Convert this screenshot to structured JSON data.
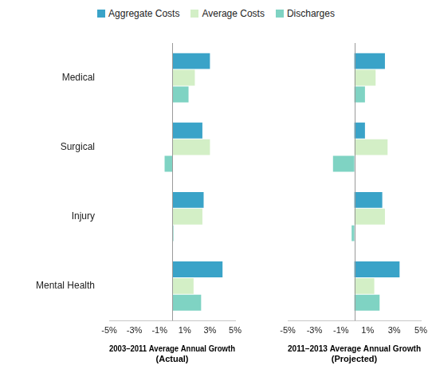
{
  "chart_data": [
    {
      "type": "bar",
      "orientation": "horizontal",
      "legend": "top",
      "grid": false,
      "x_label": [
        "2003–2011 Average Annual Growth",
        "(Actual)"
      ],
      "categories": [
        "Medical",
        "Surgical",
        "Injury",
        "Mental Health"
      ],
      "series": [
        {
          "name": "Aggregate Costs",
          "color": "#3aa3c8",
          "values": [
            3.0,
            2.4,
            2.5,
            4.0
          ]
        },
        {
          "name": "Average Costs",
          "color": "#d3efc6",
          "values": [
            1.8,
            3.0,
            2.4,
            1.7
          ]
        },
        {
          "name": "Discharges",
          "color": "#7fd3c3",
          "values": [
            1.3,
            -0.6,
            0.1,
            2.3
          ]
        }
      ],
      "xlim": [
        -5,
        5
      ],
      "xticks": [
        {
          "value": -5,
          "label": "-5%"
        },
        {
          "value": -3,
          "label": "-3%"
        },
        {
          "value": -1,
          "label": "-1%"
        },
        {
          "value": 1,
          "label": "1%"
        },
        {
          "value": 3,
          "label": "3%"
        },
        {
          "value": 5,
          "label": "5%"
        }
      ]
    },
    {
      "type": "bar",
      "orientation": "horizontal",
      "grid": false,
      "tick_labels": "x",
      "x_label": [
        "2011–2013 Average Annual Growth",
        "(Projected)"
      ],
      "categories": [
        "Medical",
        "Surgical",
        "Injury",
        "Mental Health"
      ],
      "series": [
        {
          "name": "Aggregate Costs",
          "color": "#3aa3c8",
          "values": [
            2.3,
            0.8,
            2.1,
            3.4
          ]
        },
        {
          "name": "Average Costs",
          "color": "#d3efc6",
          "values": [
            1.6,
            2.5,
            2.3,
            1.5
          ]
        },
        {
          "name": "Discharges",
          "color": "#7fd3c3",
          "values": [
            0.8,
            -1.6,
            -0.2,
            1.9
          ]
        }
      ],
      "xlim": [
        -5,
        5
      ],
      "xticks": [
        {
          "value": -5,
          "label": "-5%"
        },
        {
          "value": -3,
          "label": "-3%"
        },
        {
          "value": -1,
          "label": "-1%"
        },
        {
          "value": 1,
          "label": "1%"
        },
        {
          "value": 3,
          "label": "3%"
        },
        {
          "value": 5,
          "label": "5%"
        }
      ]
    }
  ]
}
